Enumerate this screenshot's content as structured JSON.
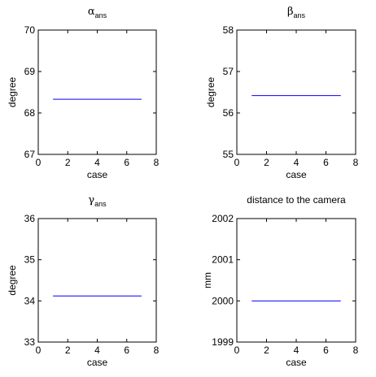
{
  "chart_data": [
    {
      "type": "line",
      "title_symbol": "α",
      "title_subscript": "ans",
      "title": "",
      "xlabel": "case",
      "ylabel": "degree",
      "xlim": [
        0,
        8
      ],
      "ylim": [
        67,
        70
      ],
      "xticks": [
        "0",
        "2",
        "4",
        "6",
        "8"
      ],
      "yticks": [
        "67",
        "68",
        "69",
        "70"
      ],
      "grid": false,
      "series": [
        {
          "color": "#0000ff",
          "x": [
            1,
            7
          ],
          "y": [
            68.33,
            68.33
          ]
        }
      ]
    },
    {
      "type": "line",
      "title_symbol": "β",
      "title_subscript": "ans",
      "title": "",
      "xlabel": "case",
      "ylabel": "degree",
      "xlim": [
        0,
        8
      ],
      "ylim": [
        55,
        58
      ],
      "xticks": [
        "0",
        "2",
        "4",
        "6",
        "8"
      ],
      "yticks": [
        "55",
        "56",
        "57",
        "58"
      ],
      "grid": false,
      "series": [
        {
          "color": "#0000ff",
          "x": [
            1,
            7
          ],
          "y": [
            56.42,
            56.42
          ]
        }
      ]
    },
    {
      "type": "line",
      "title_symbol": "γ",
      "title_subscript": "ans",
      "title": "",
      "xlabel": "case",
      "ylabel": "degree",
      "xlim": [
        0,
        8
      ],
      "ylim": [
        33,
        36
      ],
      "xticks": [
        "0",
        "2",
        "4",
        "6",
        "8"
      ],
      "yticks": [
        "33",
        "34",
        "35",
        "36"
      ],
      "grid": false,
      "series": [
        {
          "color": "#0000ff",
          "x": [
            1,
            7
          ],
          "y": [
            34.12,
            34.12
          ]
        }
      ]
    },
    {
      "type": "line",
      "title_symbol": "",
      "title_subscript": "",
      "title": "distance to the camera",
      "xlabel": "case",
      "ylabel": "mm",
      "xlim": [
        0,
        8
      ],
      "ylim": [
        1999,
        2002
      ],
      "xticks": [
        "0",
        "2",
        "4",
        "6",
        "8"
      ],
      "yticks": [
        "1999",
        "2000",
        "2001",
        "2002"
      ],
      "grid": false,
      "series": [
        {
          "color": "#0000ff",
          "x": [
            1,
            7
          ],
          "y": [
            2000,
            2000
          ]
        }
      ]
    }
  ]
}
